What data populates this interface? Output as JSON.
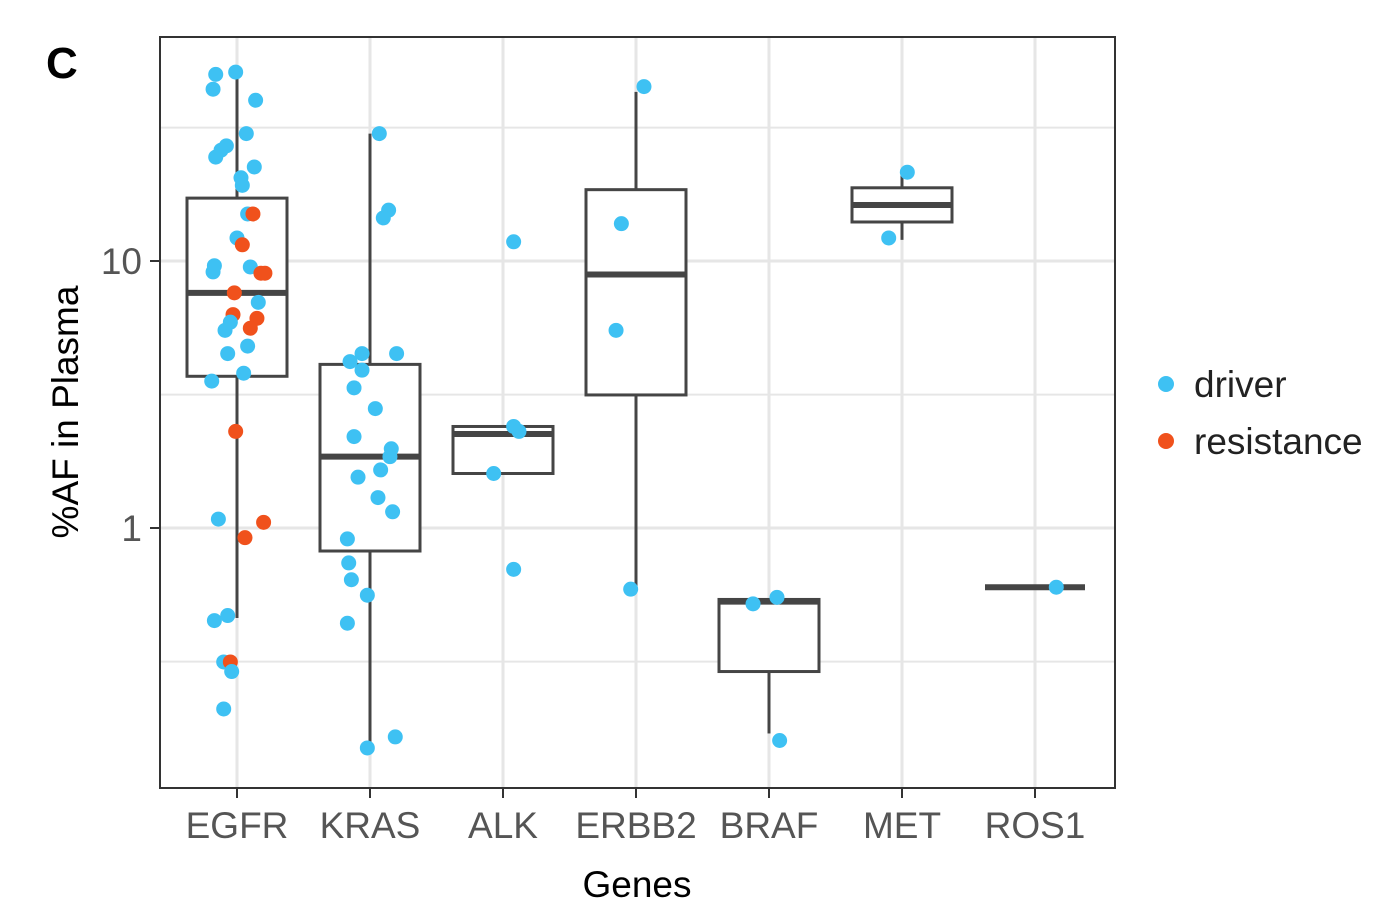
{
  "panel_label": "C",
  "colors": {
    "driver": "#3ec1f3",
    "resistance": "#f0511c",
    "box": "#454545",
    "grid": "#e6e6e6",
    "frame": "#333333"
  },
  "chart_data": {
    "type": "box",
    "xlabel": "Genes",
    "ylabel": "%AF in Plasma",
    "y_scale": "log10",
    "ylim": [
      0.12,
      70
    ],
    "y_ticks": [
      {
        "value": 1,
        "label": "1"
      },
      {
        "value": 10,
        "label": "10"
      }
    ],
    "y_minor_gridlines": [
      0.316,
      3.16,
      31.6
    ],
    "grid": true,
    "legend": {
      "position": "right",
      "entries": [
        {
          "name": "driver",
          "color": "#3ec1f3"
        },
        {
          "name": "resistance",
          "color": "#f0511c"
        }
      ]
    },
    "categories": [
      "EGFR",
      "KRAS",
      "ALK",
      "ERBB2",
      "BRAF",
      "MET",
      "ROS1"
    ],
    "boxes": [
      {
        "category": "EGFR",
        "whisker_low": 0.46,
        "q1": 3.7,
        "median": 7.6,
        "q3": 17.2,
        "whisker_high": 52
      },
      {
        "category": "KRAS",
        "whisker_low": 0.15,
        "q1": 0.82,
        "median": 1.85,
        "q3": 4.1,
        "whisker_high": 30
      },
      {
        "category": "ALK",
        "whisker_low": 1.6,
        "q1": 1.6,
        "median": 2.25,
        "q3": 2.4,
        "whisker_high": 2.4
      },
      {
        "category": "ERBB2",
        "whisker_low": 0.6,
        "q1": 3.15,
        "median": 8.9,
        "q3": 18.5,
        "whisker_high": 43
      },
      {
        "category": "BRAF",
        "whisker_low": 0.17,
        "q1": 0.29,
        "median": 0.53,
        "q3": 0.54,
        "whisker_high": 0.54
      },
      {
        "category": "MET",
        "whisker_low": 12,
        "q1": 14,
        "median": 16.2,
        "q3": 18.8,
        "whisker_high": 21.5
      },
      {
        "category": "ROS1",
        "whisker_low": 0.6,
        "q1": 0.6,
        "median": 0.6,
        "q3": 0.6,
        "whisker_high": 0.6
      }
    ],
    "points": [
      {
        "category": "EGFR",
        "jitter": -0.16,
        "value": 50,
        "type": "driver"
      },
      {
        "category": "EGFR",
        "jitter": -0.01,
        "value": 51,
        "type": "driver"
      },
      {
        "category": "EGFR",
        "jitter": -0.18,
        "value": 44,
        "type": "driver"
      },
      {
        "category": "EGFR",
        "jitter": 0.14,
        "value": 40,
        "type": "driver"
      },
      {
        "category": "EGFR",
        "jitter": 0.07,
        "value": 30,
        "type": "driver"
      },
      {
        "category": "EGFR",
        "jitter": -0.08,
        "value": 27,
        "type": "driver"
      },
      {
        "category": "EGFR",
        "jitter": -0.12,
        "value": 26,
        "type": "driver"
      },
      {
        "category": "EGFR",
        "jitter": -0.16,
        "value": 24.5,
        "type": "driver"
      },
      {
        "category": "EGFR",
        "jitter": 0.13,
        "value": 22.5,
        "type": "driver"
      },
      {
        "category": "EGFR",
        "jitter": 0.03,
        "value": 20.5,
        "type": "driver"
      },
      {
        "category": "EGFR",
        "jitter": 0.04,
        "value": 19.2,
        "type": "driver"
      },
      {
        "category": "EGFR",
        "jitter": 0.08,
        "value": 15,
        "type": "driver"
      },
      {
        "category": "EGFR",
        "jitter": 0.12,
        "value": 15,
        "type": "resistance"
      },
      {
        "category": "EGFR",
        "jitter": 0.0,
        "value": 12.2,
        "type": "driver"
      },
      {
        "category": "EGFR",
        "jitter": 0.04,
        "value": 11.5,
        "type": "resistance"
      },
      {
        "category": "EGFR",
        "jitter": -0.17,
        "value": 9.6,
        "type": "driver"
      },
      {
        "category": "EGFR",
        "jitter": 0.1,
        "value": 9.5,
        "type": "driver"
      },
      {
        "category": "EGFR",
        "jitter": -0.18,
        "value": 9.1,
        "type": "driver"
      },
      {
        "category": "EGFR",
        "jitter": 0.18,
        "value": 9.0,
        "type": "resistance"
      },
      {
        "category": "EGFR",
        "jitter": 0.21,
        "value": 9.0,
        "type": "resistance"
      },
      {
        "category": "EGFR",
        "jitter": -0.02,
        "value": 7.6,
        "type": "resistance"
      },
      {
        "category": "EGFR",
        "jitter": 0.16,
        "value": 7.0,
        "type": "driver"
      },
      {
        "category": "EGFR",
        "jitter": -0.03,
        "value": 6.3,
        "type": "resistance"
      },
      {
        "category": "EGFR",
        "jitter": 0.15,
        "value": 6.1,
        "type": "resistance"
      },
      {
        "category": "EGFR",
        "jitter": -0.05,
        "value": 5.9,
        "type": "driver"
      },
      {
        "category": "EGFR",
        "jitter": 0.1,
        "value": 5.6,
        "type": "resistance"
      },
      {
        "category": "EGFR",
        "jitter": -0.09,
        "value": 5.5,
        "type": "driver"
      },
      {
        "category": "EGFR",
        "jitter": 0.08,
        "value": 4.8,
        "type": "driver"
      },
      {
        "category": "EGFR",
        "jitter": -0.07,
        "value": 4.5,
        "type": "driver"
      },
      {
        "category": "EGFR",
        "jitter": 0.05,
        "value": 3.8,
        "type": "driver"
      },
      {
        "category": "EGFR",
        "jitter": -0.19,
        "value": 3.55,
        "type": "driver"
      },
      {
        "category": "EGFR",
        "jitter": -0.01,
        "value": 2.3,
        "type": "resistance"
      },
      {
        "category": "EGFR",
        "jitter": -0.14,
        "value": 1.08,
        "type": "driver"
      },
      {
        "category": "EGFR",
        "jitter": 0.2,
        "value": 1.05,
        "type": "resistance"
      },
      {
        "category": "EGFR",
        "jitter": 0.06,
        "value": 0.92,
        "type": "resistance"
      },
      {
        "category": "EGFR",
        "jitter": -0.07,
        "value": 0.47,
        "type": "driver"
      },
      {
        "category": "EGFR",
        "jitter": -0.17,
        "value": 0.45,
        "type": "driver"
      },
      {
        "category": "EGFR",
        "jitter": -0.1,
        "value": 0.315,
        "type": "driver"
      },
      {
        "category": "EGFR",
        "jitter": -0.05,
        "value": 0.315,
        "type": "resistance"
      },
      {
        "category": "EGFR",
        "jitter": -0.04,
        "value": 0.29,
        "type": "driver"
      },
      {
        "category": "EGFR",
        "jitter": -0.1,
        "value": 0.21,
        "type": "driver"
      },
      {
        "category": "KRAS",
        "jitter": 0.07,
        "value": 30,
        "type": "driver"
      },
      {
        "category": "KRAS",
        "jitter": 0.14,
        "value": 15.5,
        "type": "driver"
      },
      {
        "category": "KRAS",
        "jitter": 0.1,
        "value": 14.5,
        "type": "driver"
      },
      {
        "category": "KRAS",
        "jitter": -0.06,
        "value": 4.5,
        "type": "driver"
      },
      {
        "category": "KRAS",
        "jitter": 0.2,
        "value": 4.5,
        "type": "driver"
      },
      {
        "category": "KRAS",
        "jitter": -0.15,
        "value": 4.2,
        "type": "driver"
      },
      {
        "category": "KRAS",
        "jitter": -0.06,
        "value": 3.9,
        "type": "driver"
      },
      {
        "category": "KRAS",
        "jitter": -0.12,
        "value": 3.35,
        "type": "driver"
      },
      {
        "category": "KRAS",
        "jitter": 0.04,
        "value": 2.8,
        "type": "driver"
      },
      {
        "category": "KRAS",
        "jitter": -0.12,
        "value": 2.2,
        "type": "driver"
      },
      {
        "category": "KRAS",
        "jitter": 0.16,
        "value": 1.98,
        "type": "driver"
      },
      {
        "category": "KRAS",
        "jitter": 0.15,
        "value": 1.85,
        "type": "driver"
      },
      {
        "category": "KRAS",
        "jitter": 0.08,
        "value": 1.65,
        "type": "driver"
      },
      {
        "category": "KRAS",
        "jitter": -0.09,
        "value": 1.55,
        "type": "driver"
      },
      {
        "category": "KRAS",
        "jitter": 0.06,
        "value": 1.3,
        "type": "driver"
      },
      {
        "category": "KRAS",
        "jitter": 0.17,
        "value": 1.15,
        "type": "driver"
      },
      {
        "category": "KRAS",
        "jitter": -0.17,
        "value": 0.91,
        "type": "driver"
      },
      {
        "category": "KRAS",
        "jitter": -0.16,
        "value": 0.74,
        "type": "driver"
      },
      {
        "category": "KRAS",
        "jitter": -0.14,
        "value": 0.64,
        "type": "driver"
      },
      {
        "category": "KRAS",
        "jitter": -0.02,
        "value": 0.56,
        "type": "driver"
      },
      {
        "category": "KRAS",
        "jitter": -0.17,
        "value": 0.44,
        "type": "driver"
      },
      {
        "category": "KRAS",
        "jitter": 0.19,
        "value": 0.165,
        "type": "driver"
      },
      {
        "category": "KRAS",
        "jitter": -0.02,
        "value": 0.15,
        "type": "driver"
      },
      {
        "category": "ALK",
        "jitter": 0.08,
        "value": 11.8,
        "type": "driver"
      },
      {
        "category": "ALK",
        "jitter": 0.08,
        "value": 2.4,
        "type": "driver"
      },
      {
        "category": "ALK",
        "jitter": 0.12,
        "value": 2.3,
        "type": "driver"
      },
      {
        "category": "ALK",
        "jitter": -0.07,
        "value": 1.6,
        "type": "driver"
      },
      {
        "category": "ALK",
        "jitter": 0.08,
        "value": 0.7,
        "type": "driver"
      },
      {
        "category": "ERBB2",
        "jitter": 0.06,
        "value": 45,
        "type": "driver"
      },
      {
        "category": "ERBB2",
        "jitter": -0.11,
        "value": 13.8,
        "type": "driver"
      },
      {
        "category": "ERBB2",
        "jitter": -0.15,
        "value": 5.5,
        "type": "driver"
      },
      {
        "category": "ERBB2",
        "jitter": -0.04,
        "value": 0.59,
        "type": "driver"
      },
      {
        "category": "BRAF",
        "jitter": -0.12,
        "value": 0.52,
        "type": "driver"
      },
      {
        "category": "BRAF",
        "jitter": 0.06,
        "value": 0.55,
        "type": "driver"
      },
      {
        "category": "BRAF",
        "jitter": 0.08,
        "value": 0.16,
        "type": "driver"
      },
      {
        "category": "MET",
        "jitter": 0.04,
        "value": 21.5,
        "type": "driver"
      },
      {
        "category": "MET",
        "jitter": -0.1,
        "value": 12.2,
        "type": "driver"
      },
      {
        "category": "ROS1",
        "jitter": 0.16,
        "value": 0.6,
        "type": "driver"
      }
    ]
  }
}
